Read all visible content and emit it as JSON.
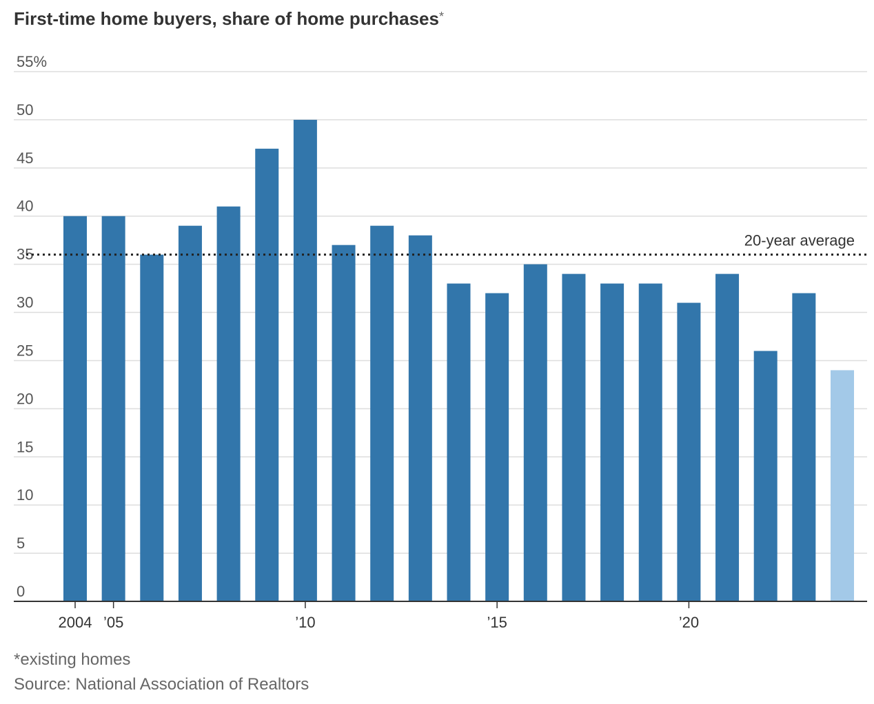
{
  "title": "First-time home buyers, share of home purchases",
  "title_marker": "*",
  "footnote": "*existing homes",
  "source": "Source: National Association of Realtors",
  "chart_data": {
    "type": "bar",
    "title": "First-time home buyers, share of home purchases*",
    "categories": [
      "2004",
      "2005",
      "2006",
      "2007",
      "2008",
      "2009",
      "2010",
      "2011",
      "2012",
      "2013",
      "2014",
      "2015",
      "2016",
      "2017",
      "2018",
      "2019",
      "2020",
      "2021",
      "2022",
      "2023",
      "2024"
    ],
    "values": [
      40,
      40,
      36,
      39,
      41,
      47,
      50,
      37,
      39,
      38,
      33,
      32,
      35,
      34,
      33,
      33,
      31,
      34,
      26,
      32,
      24
    ],
    "x_tick_labels": [
      {
        "category": "2004",
        "label": "2004"
      },
      {
        "category": "2005",
        "label": "’05"
      },
      {
        "category": "2010",
        "label": "’10"
      },
      {
        "category": "2015",
        "label": "’15"
      },
      {
        "category": "2020",
        "label": "’20"
      }
    ],
    "y_ticks": [
      0,
      5,
      10,
      15,
      20,
      25,
      30,
      35,
      40,
      45,
      50,
      55
    ],
    "y_tick_labels": [
      "0",
      "5",
      "10",
      "15",
      "20",
      "25",
      "30",
      "35",
      "40",
      "45",
      "50",
      "55%"
    ],
    "ylim": [
      0,
      55
    ],
    "xlabel": "",
    "ylabel": "",
    "grid": true,
    "reference_line": {
      "value": 36,
      "label": "20-year average",
      "style": "dotted"
    },
    "colors": {
      "bar": "#3276ab",
      "highlight_bar": "#a3c9e8",
      "grid": "#dddddd",
      "axis": "#333333",
      "reference": "#222222"
    },
    "highlight_category": "2024"
  }
}
